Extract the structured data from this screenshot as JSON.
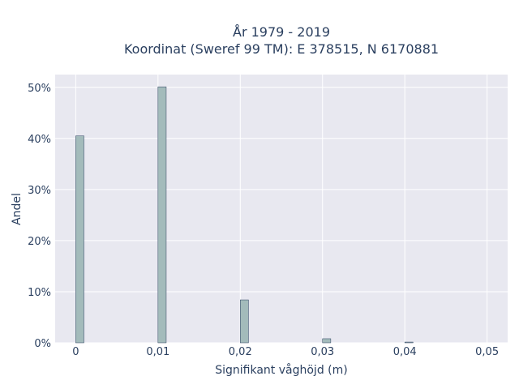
{
  "chart_data": {
    "type": "bar",
    "title_lines": [
      "År 1979 - 2019",
      "Koordinat (Sweref 99 TM): E 378515, N 6170881"
    ],
    "xlabel": "Signifikant våghöjd (m)",
    "ylabel": "Andel",
    "x_ticks": [
      "0",
      "0,01",
      "0,02",
      "0,03",
      "0,04",
      "0,05"
    ],
    "x_tick_values": [
      0,
      0.01,
      0.02,
      0.03,
      0.04,
      0.05
    ],
    "y_ticks": [
      "0%",
      "10%",
      "20%",
      "30%",
      "40%",
      "50%"
    ],
    "y_tick_values": [
      0,
      10,
      20,
      30,
      40,
      50
    ],
    "xlim": [
      -0.0025,
      0.0525
    ],
    "ylim": [
      0,
      52.5
    ],
    "bar_width": 0.001,
    "x": [
      0.0005,
      0.0105,
      0.0205,
      0.0305,
      0.0405
    ],
    "values": [
      40.5,
      50.1,
      8.4,
      0.8,
      0.15
    ],
    "grid": true,
    "bar_color": "#a3bbbb",
    "bar_stroke": "#2a3f5f",
    "plot_bg": "#e8e8f0",
    "grid_color": "#ffffff"
  }
}
